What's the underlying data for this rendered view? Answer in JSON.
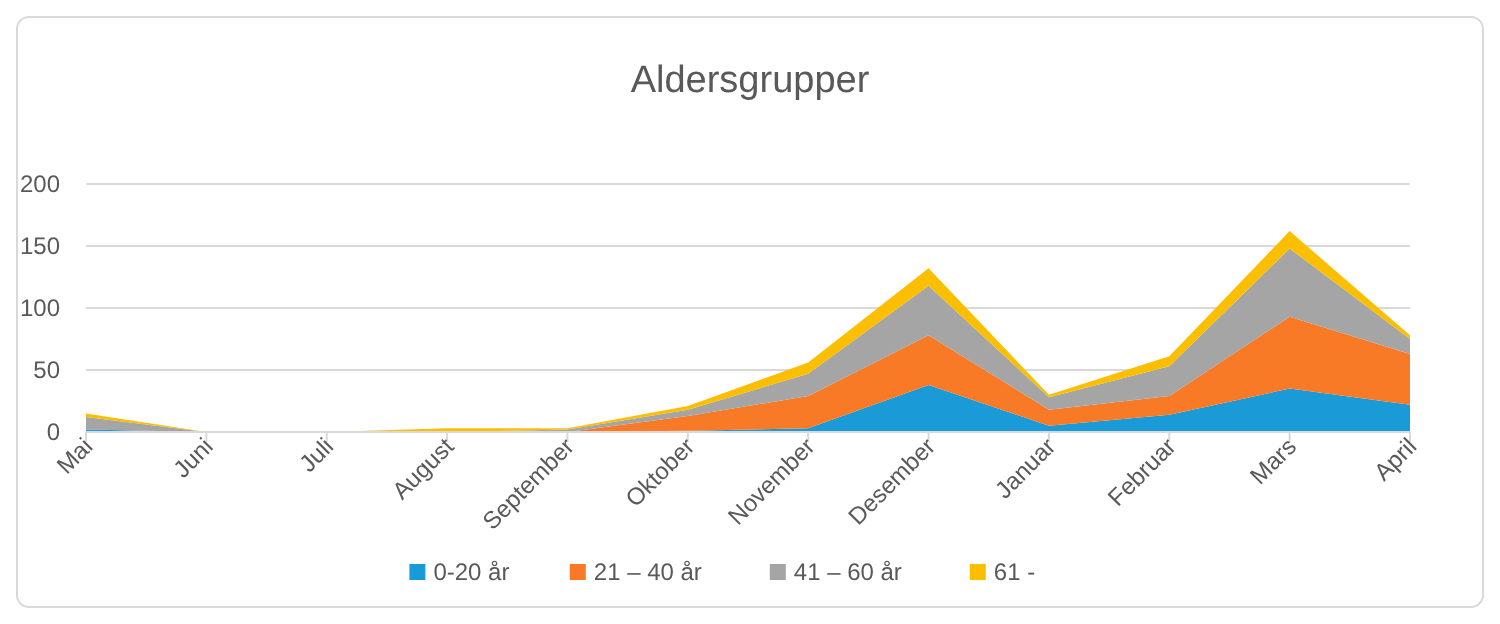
{
  "chart_data": {
    "type": "area",
    "stacked": true,
    "title": "Aldersgrupper",
    "categories": [
      "Mai",
      "Juni",
      "Juli",
      "August",
      "September",
      "Oktober",
      "November",
      "Desember",
      "Januar",
      "Februar",
      "Mars",
      "April"
    ],
    "series": [
      {
        "name": "0-20 år",
        "color": "#1a9ad6",
        "values": [
          2,
          0,
          0,
          0,
          0,
          1,
          3,
          38,
          5,
          14,
          35,
          22
        ]
      },
      {
        "name": "21 – 40 år",
        "color": "#f97a26",
        "values": [
          0,
          0,
          0,
          0,
          0,
          12,
          26,
          40,
          13,
          15,
          58,
          41
        ]
      },
      {
        "name": "41 – 60 år",
        "color": "#a5a5a5",
        "values": [
          10,
          0,
          0,
          0,
          2,
          5,
          18,
          40,
          10,
          24,
          55,
          12
        ]
      },
      {
        "name": "61 -",
        "color": "#fcbf00",
        "values": [
          3,
          0,
          0,
          3,
          1,
          3,
          9,
          14,
          2,
          8,
          14,
          3
        ]
      }
    ],
    "ylim": [
      0,
      200
    ],
    "yticks": [
      0,
      50,
      100,
      150,
      200
    ],
    "grid": "y",
    "legend": "bottom"
  }
}
